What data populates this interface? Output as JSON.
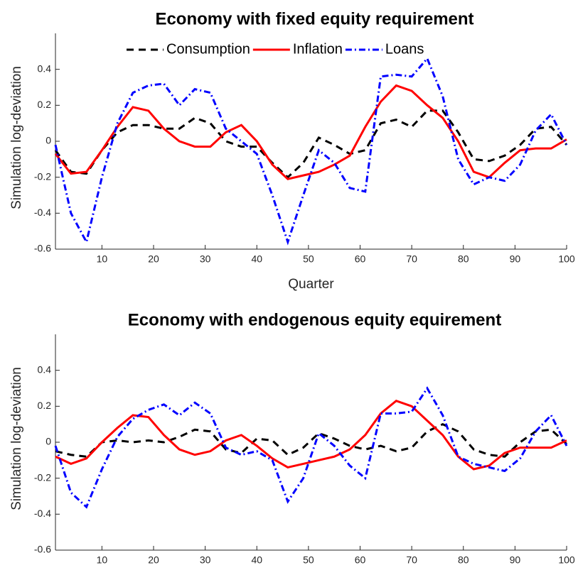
{
  "chart_data": [
    {
      "type": "line",
      "title": "Economy with fixed equity requirement",
      "xlabel": "Quarter",
      "ylabel": "Simulation log-deviation",
      "x": [
        1,
        4,
        7,
        10,
        13,
        16,
        19,
        22,
        25,
        28,
        31,
        34,
        37,
        40,
        43,
        46,
        49,
        52,
        55,
        58,
        61,
        64,
        67,
        70,
        73,
        76,
        79,
        82,
        85,
        88,
        91,
        94,
        97,
        100
      ],
      "series": [
        {
          "name": "Consumption",
          "color": "#000000",
          "style": "dashed",
          "values": [
            -0.05,
            -0.17,
            -0.18,
            -0.05,
            0.05,
            0.09,
            0.09,
            0.07,
            0.07,
            0.13,
            0.1,
            0.0,
            -0.03,
            -0.03,
            -0.12,
            -0.2,
            -0.12,
            0.02,
            -0.02,
            -0.07,
            -0.05,
            0.1,
            0.12,
            0.08,
            0.17,
            0.17,
            0.05,
            -0.1,
            -0.11,
            -0.08,
            -0.02,
            0.07,
            0.08,
            -0.02
          ]
        },
        {
          "name": "Inflation",
          "color": "#ff0000",
          "style": "solid",
          "values": [
            -0.07,
            -0.18,
            -0.17,
            -0.05,
            0.08,
            0.19,
            0.17,
            0.07,
            0.0,
            -0.03,
            -0.03,
            0.05,
            0.09,
            0.0,
            -0.13,
            -0.21,
            -0.19,
            -0.17,
            -0.13,
            -0.08,
            0.08,
            0.22,
            0.31,
            0.28,
            0.2,
            0.13,
            0.0,
            -0.17,
            -0.2,
            -0.12,
            -0.05,
            -0.04,
            -0.04,
            0.01
          ]
        },
        {
          "name": "Loans",
          "color": "#0000ff",
          "style": "dashdot",
          "values": [
            -0.02,
            -0.4,
            -0.56,
            -0.2,
            0.1,
            0.27,
            0.31,
            0.32,
            0.2,
            0.29,
            0.27,
            0.07,
            0.0,
            -0.07,
            -0.3,
            -0.56,
            -0.3,
            -0.05,
            -0.12,
            -0.26,
            -0.28,
            0.36,
            0.37,
            0.36,
            0.46,
            0.25,
            -0.1,
            -0.24,
            -0.2,
            -0.22,
            -0.13,
            0.06,
            0.15,
            -0.02
          ]
        }
      ],
      "xlim": [
        1,
        100
      ],
      "xticks": [
        10,
        20,
        30,
        40,
        50,
        60,
        70,
        80,
        90,
        100
      ],
      "ylim": [
        -0.6,
        0.6
      ],
      "yticks": [
        -0.6,
        -0.4,
        -0.2,
        0,
        0.2,
        0.4
      ],
      "legend": "top"
    },
    {
      "type": "line",
      "title": "Economy with endogenous equity equirement",
      "ylabel": "Simulation log-deviation",
      "x": [
        1,
        4,
        7,
        10,
        13,
        16,
        19,
        22,
        25,
        28,
        31,
        34,
        37,
        40,
        43,
        46,
        49,
        52,
        55,
        58,
        61,
        64,
        67,
        70,
        73,
        76,
        79,
        82,
        85,
        88,
        91,
        94,
        97,
        100
      ],
      "series": [
        {
          "color": "#000000",
          "style": "dashed",
          "values": [
            -0.05,
            -0.07,
            -0.08,
            0.0,
            0.01,
            0.0,
            0.01,
            0.0,
            0.03,
            0.07,
            0.06,
            -0.04,
            -0.06,
            0.02,
            0.01,
            -0.07,
            -0.03,
            0.05,
            0.02,
            -0.02,
            -0.04,
            -0.02,
            -0.05,
            -0.03,
            0.06,
            0.1,
            0.06,
            -0.04,
            -0.07,
            -0.08,
            0.0,
            0.06,
            0.07,
            -0.01
          ]
        },
        {
          "color": "#ff0000",
          "style": "solid",
          "values": [
            -0.08,
            -0.12,
            -0.09,
            0.0,
            0.08,
            0.15,
            0.14,
            0.04,
            -0.04,
            -0.07,
            -0.05,
            0.01,
            0.04,
            -0.02,
            -0.09,
            -0.14,
            -0.12,
            -0.1,
            -0.08,
            -0.04,
            0.04,
            0.16,
            0.23,
            0.2,
            0.12,
            0.04,
            -0.08,
            -0.15,
            -0.13,
            -0.06,
            -0.03,
            -0.03,
            -0.03,
            0.01
          ]
        },
        {
          "color": "#0000ff",
          "style": "dashdot",
          "values": [
            -0.02,
            -0.28,
            -0.36,
            -0.15,
            0.03,
            0.13,
            0.18,
            0.21,
            0.15,
            0.22,
            0.16,
            -0.03,
            -0.07,
            -0.05,
            -0.1,
            -0.33,
            -0.2,
            0.05,
            -0.02,
            -0.13,
            -0.2,
            0.16,
            0.16,
            0.17,
            0.3,
            0.15,
            -0.08,
            -0.12,
            -0.14,
            -0.16,
            -0.09,
            0.06,
            0.15,
            -0.02
          ]
        }
      ],
      "xlim": [
        1,
        100
      ],
      "xticks": [
        10,
        20,
        30,
        40,
        50,
        60,
        70,
        80,
        90,
        100
      ],
      "ylim": [
        -0.6,
        0.6
      ],
      "yticks": [
        -0.6,
        -0.4,
        -0.2,
        0,
        0.2,
        0.4
      ]
    }
  ]
}
